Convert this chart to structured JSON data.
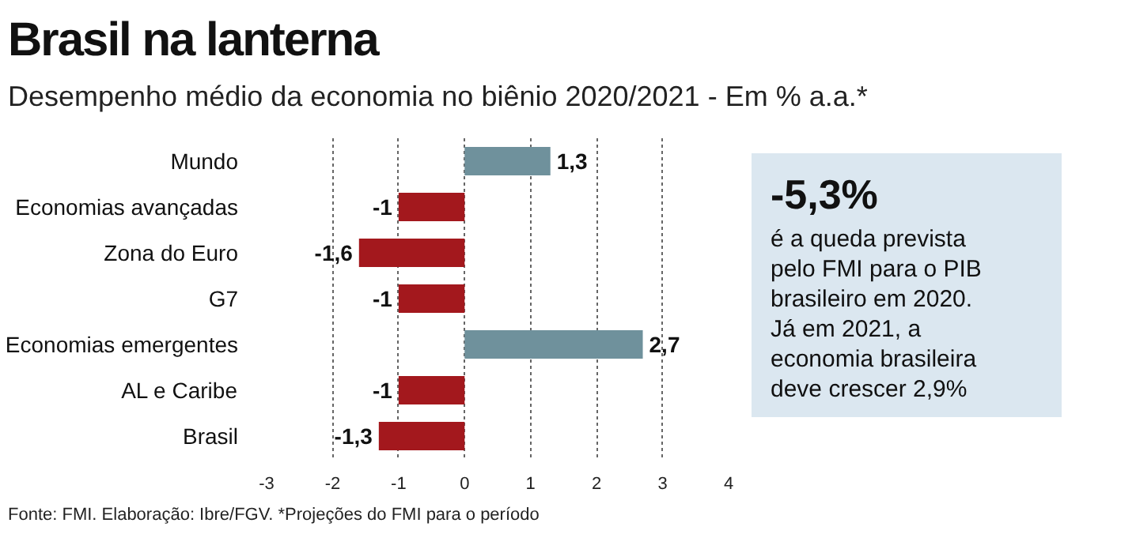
{
  "chart_data": [
    {
      "type": "bar",
      "orientation": "horizontal",
      "title": "Brasil na lanterna",
      "subtitle": "Desempenho médio da economia no biênio 2020/2021 - Em % a.a.*",
      "categories": [
        "Mundo",
        "Economias avançadas",
        "Zona do Euro",
        "G7",
        "Economias emergentes",
        "AL e Caribe",
        "Brasil"
      ],
      "values": [
        1.3,
        -1,
        -1.6,
        -1,
        2.7,
        -1,
        -1.3
      ],
      "colors": [
        "#6f919c",
        "#a3181d",
        "#a3181d",
        "#a3181d",
        "#6f919c",
        "#a3181d",
        "#a3181d"
      ],
      "value_labels": [
        "1,3",
        "-1",
        "-1,6",
        "-1",
        "2,7",
        "-1",
        "-1,3"
      ],
      "xlim": [
        -3,
        4
      ],
      "xticks": [
        -3,
        -2,
        -1,
        0,
        1,
        2,
        3,
        4
      ],
      "grid": "x",
      "annotations": [
        "Fonte: FMI. Elaboração: Ibre/FGV. *Projeções do FMI para o período"
      ]
    },
    {
      "type": "other",
      "title": "-5,3%",
      "annotations": [
        "é a queda prevista",
        "pelo FMI para o PIB",
        "brasileiro em 2020.",
        "Já em 2021, a",
        "economia brasileira",
        "deve crescer 2,9%"
      ]
    }
  ]
}
